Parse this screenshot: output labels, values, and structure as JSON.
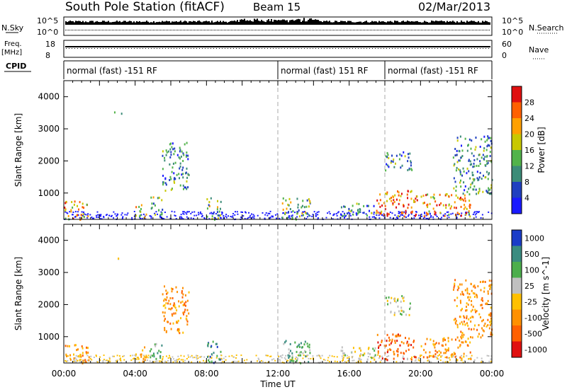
{
  "header": {
    "station": "South Pole Station (fitACF)",
    "beam": "Beam 15",
    "date": "02/Mar/2013"
  },
  "top_panels": {
    "nsky_label": "N.Sky",
    "nsearch_label": "N.Search",
    "freq_label_1": "Freq.",
    "freq_label_2": "[MHz]",
    "nave_label": "Nave",
    "cpid_label": "CPID",
    "noise_tick_top": "10^5",
    "noise_tick_bottom": "10^0",
    "freq_tick_top": "18",
    "freq_tick_bottom": "8",
    "nave_tick_top": "60",
    "nave_tick_bottom": "0",
    "cpid_segments": [
      {
        "label": "normal (fast) -151 RF",
        "start_hour": 0
      },
      {
        "label": "normal (fast) 151 RF",
        "start_hour": 12
      },
      {
        "label": "normal (fast) -151 RF",
        "start_hour": 18
      }
    ]
  },
  "x_axis": {
    "title": "Time UT",
    "ticks": [
      "00:00",
      "04:00",
      "08:00",
      "12:00",
      "16:00",
      "20:00",
      "00:00"
    ],
    "tick_hours": [
      0,
      4,
      8,
      12,
      16,
      20,
      24
    ]
  },
  "power_panel": {
    "ylabel": "Slant Range [km]",
    "yticks": [
      "1000",
      "2000",
      "3000",
      "4000"
    ],
    "colorbar_label": "Power [dB]",
    "colorbar_ticks": [
      "4",
      "8",
      "12",
      "16",
      "20",
      "24",
      "28"
    ],
    "colors": [
      "#1a1aff",
      "#2040c0",
      "#3c8c78",
      "#52b34a",
      "#c8c800",
      "#ffa000",
      "#ff6000",
      "#e01010"
    ]
  },
  "velocity_panel": {
    "ylabel": "Slant Range [km]",
    "yticks": [
      "1000",
      "2000",
      "3000",
      "4000"
    ],
    "colorbar_label": "Velocity [m s^-1]",
    "colorbar_ticks": [
      "1000",
      "500",
      "100",
      "25",
      "-25",
      "-100",
      "-500",
      "-1000"
    ],
    "colors": [
      "#1a3cc8",
      "#3a8c80",
      "#4cae4c",
      "#c0c0c0",
      "#ffc000",
      "#ff9000",
      "#ff6000",
      "#e01010"
    ]
  },
  "chart_data": {
    "type": "heatmap",
    "title": "South Pole Station (fitACF) Beam 15 02/Mar/2013",
    "xlabel": "Time UT",
    "ylabel": "Slant Range [km]",
    "xlim_hours": [
      0,
      24
    ],
    "ylim_km": [
      180,
      4500
    ],
    "vertical_markers_hours": [
      12,
      18
    ],
    "scatter_regions": [
      {
        "t_start": 0.0,
        "t_end": 1.4,
        "r_min": 200,
        "r_max": 800,
        "power_db": 20,
        "velocity": -100
      },
      {
        "t_start": 2.8,
        "t_end": 3.4,
        "r_min": 3450,
        "r_max": 3550,
        "power_db": 6,
        "velocity": 25
      },
      {
        "t_start": 4.0,
        "t_end": 4.6,
        "r_min": 250,
        "r_max": 700,
        "power_db": 14,
        "velocity": -100
      },
      {
        "t_start": 4.8,
        "t_end": 5.5,
        "r_min": 300,
        "r_max": 900,
        "power_db": 12,
        "velocity": 100
      },
      {
        "t_start": 5.5,
        "t_end": 7.0,
        "r_min": 1100,
        "r_max": 2600,
        "power_db": 6,
        "velocity": -100
      },
      {
        "t_start": 8.0,
        "t_end": 8.8,
        "r_min": 200,
        "r_max": 900,
        "power_db": 12,
        "velocity": 500
      },
      {
        "t_start": 12.2,
        "t_end": 13.8,
        "r_min": 200,
        "r_max": 900,
        "power_db": 10,
        "velocity": 100
      },
      {
        "t_start": 15.5,
        "t_end": 17.5,
        "r_min": 300,
        "r_max": 700,
        "power_db": 8,
        "velocity": 25
      },
      {
        "t_start": 17.5,
        "t_end": 19.8,
        "r_min": 300,
        "r_max": 1100,
        "power_db": 22,
        "velocity": -500
      },
      {
        "t_start": 18.0,
        "t_end": 19.5,
        "r_min": 1700,
        "r_max": 2300,
        "power_db": 6,
        "velocity": 25
      },
      {
        "t_start": 20.0,
        "t_end": 22.8,
        "r_min": 300,
        "r_max": 1000,
        "power_db": 20,
        "velocity": -100
      },
      {
        "t_start": 21.8,
        "t_end": 24.0,
        "r_min": 1000,
        "r_max": 2800,
        "power_db": 8,
        "velocity": -100
      }
    ]
  }
}
